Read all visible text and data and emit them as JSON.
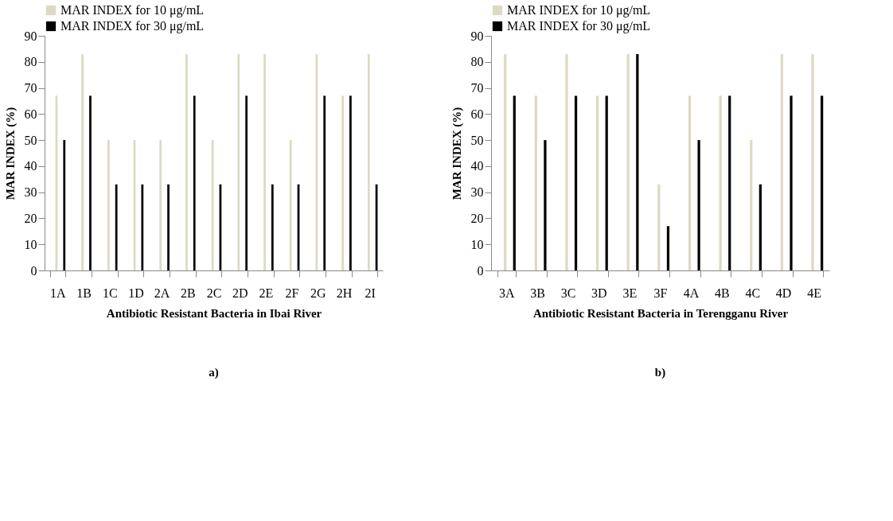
{
  "chart_data": [
    {
      "type": "bar",
      "xlabel": "Antibiotic Resistant Bacteria in Ibai River",
      "ylabel": "MAR INDEX (%)",
      "annotations": [
        "a)"
      ],
      "categories": [
        "1A",
        "1B",
        "1C",
        "1D",
        "2A",
        "2B",
        "2C",
        "2D",
        "2E",
        "2F",
        "2G",
        "2H",
        "2I"
      ],
      "ylim": [
        0,
        90
      ],
      "yticks": [
        0,
        10,
        20,
        30,
        40,
        50,
        60,
        70,
        80,
        90
      ],
      "grid": false,
      "legend": "top",
      "series": [
        {
          "name": "MAR INDEX for 10 μg/mL",
          "color": "#ddd9c3",
          "values": [
            67,
            83,
            50,
            50,
            50,
            83,
            50,
            83,
            83,
            50,
            83,
            67,
            83
          ]
        },
        {
          "name": "MAR INDEX for 30 μg/mL",
          "color": "#000000",
          "values": [
            50,
            67,
            33,
            33,
            33,
            67,
            33,
            67,
            33,
            33,
            67,
            67,
            33
          ]
        }
      ]
    },
    {
      "type": "bar",
      "xlabel": "Antibiotic Resistant Bacteria in Terengganu River",
      "ylabel": "MAR INDEX (%)",
      "annotations": [
        "b)"
      ],
      "categories": [
        "3A",
        "3B",
        "3C",
        "3D",
        "3E",
        "3F",
        "4A",
        "4B",
        "4C",
        "4D",
        "4E"
      ],
      "ylim": [
        0,
        90
      ],
      "yticks": [
        0,
        10,
        20,
        30,
        40,
        50,
        60,
        70,
        80,
        90
      ],
      "grid": false,
      "legend": "top",
      "series": [
        {
          "name": "MAR INDEX for 10 μg/mL",
          "color": "#ddd9c3",
          "values": [
            83,
            67,
            83,
            67,
            83,
            33,
            67,
            67,
            50,
            83,
            83
          ]
        },
        {
          "name": "MAR INDEX for 30 μg/mL",
          "color": "#000000",
          "values": [
            67,
            50,
            67,
            67,
            83,
            17,
            50,
            67,
            33,
            67,
            67
          ]
        }
      ]
    }
  ]
}
